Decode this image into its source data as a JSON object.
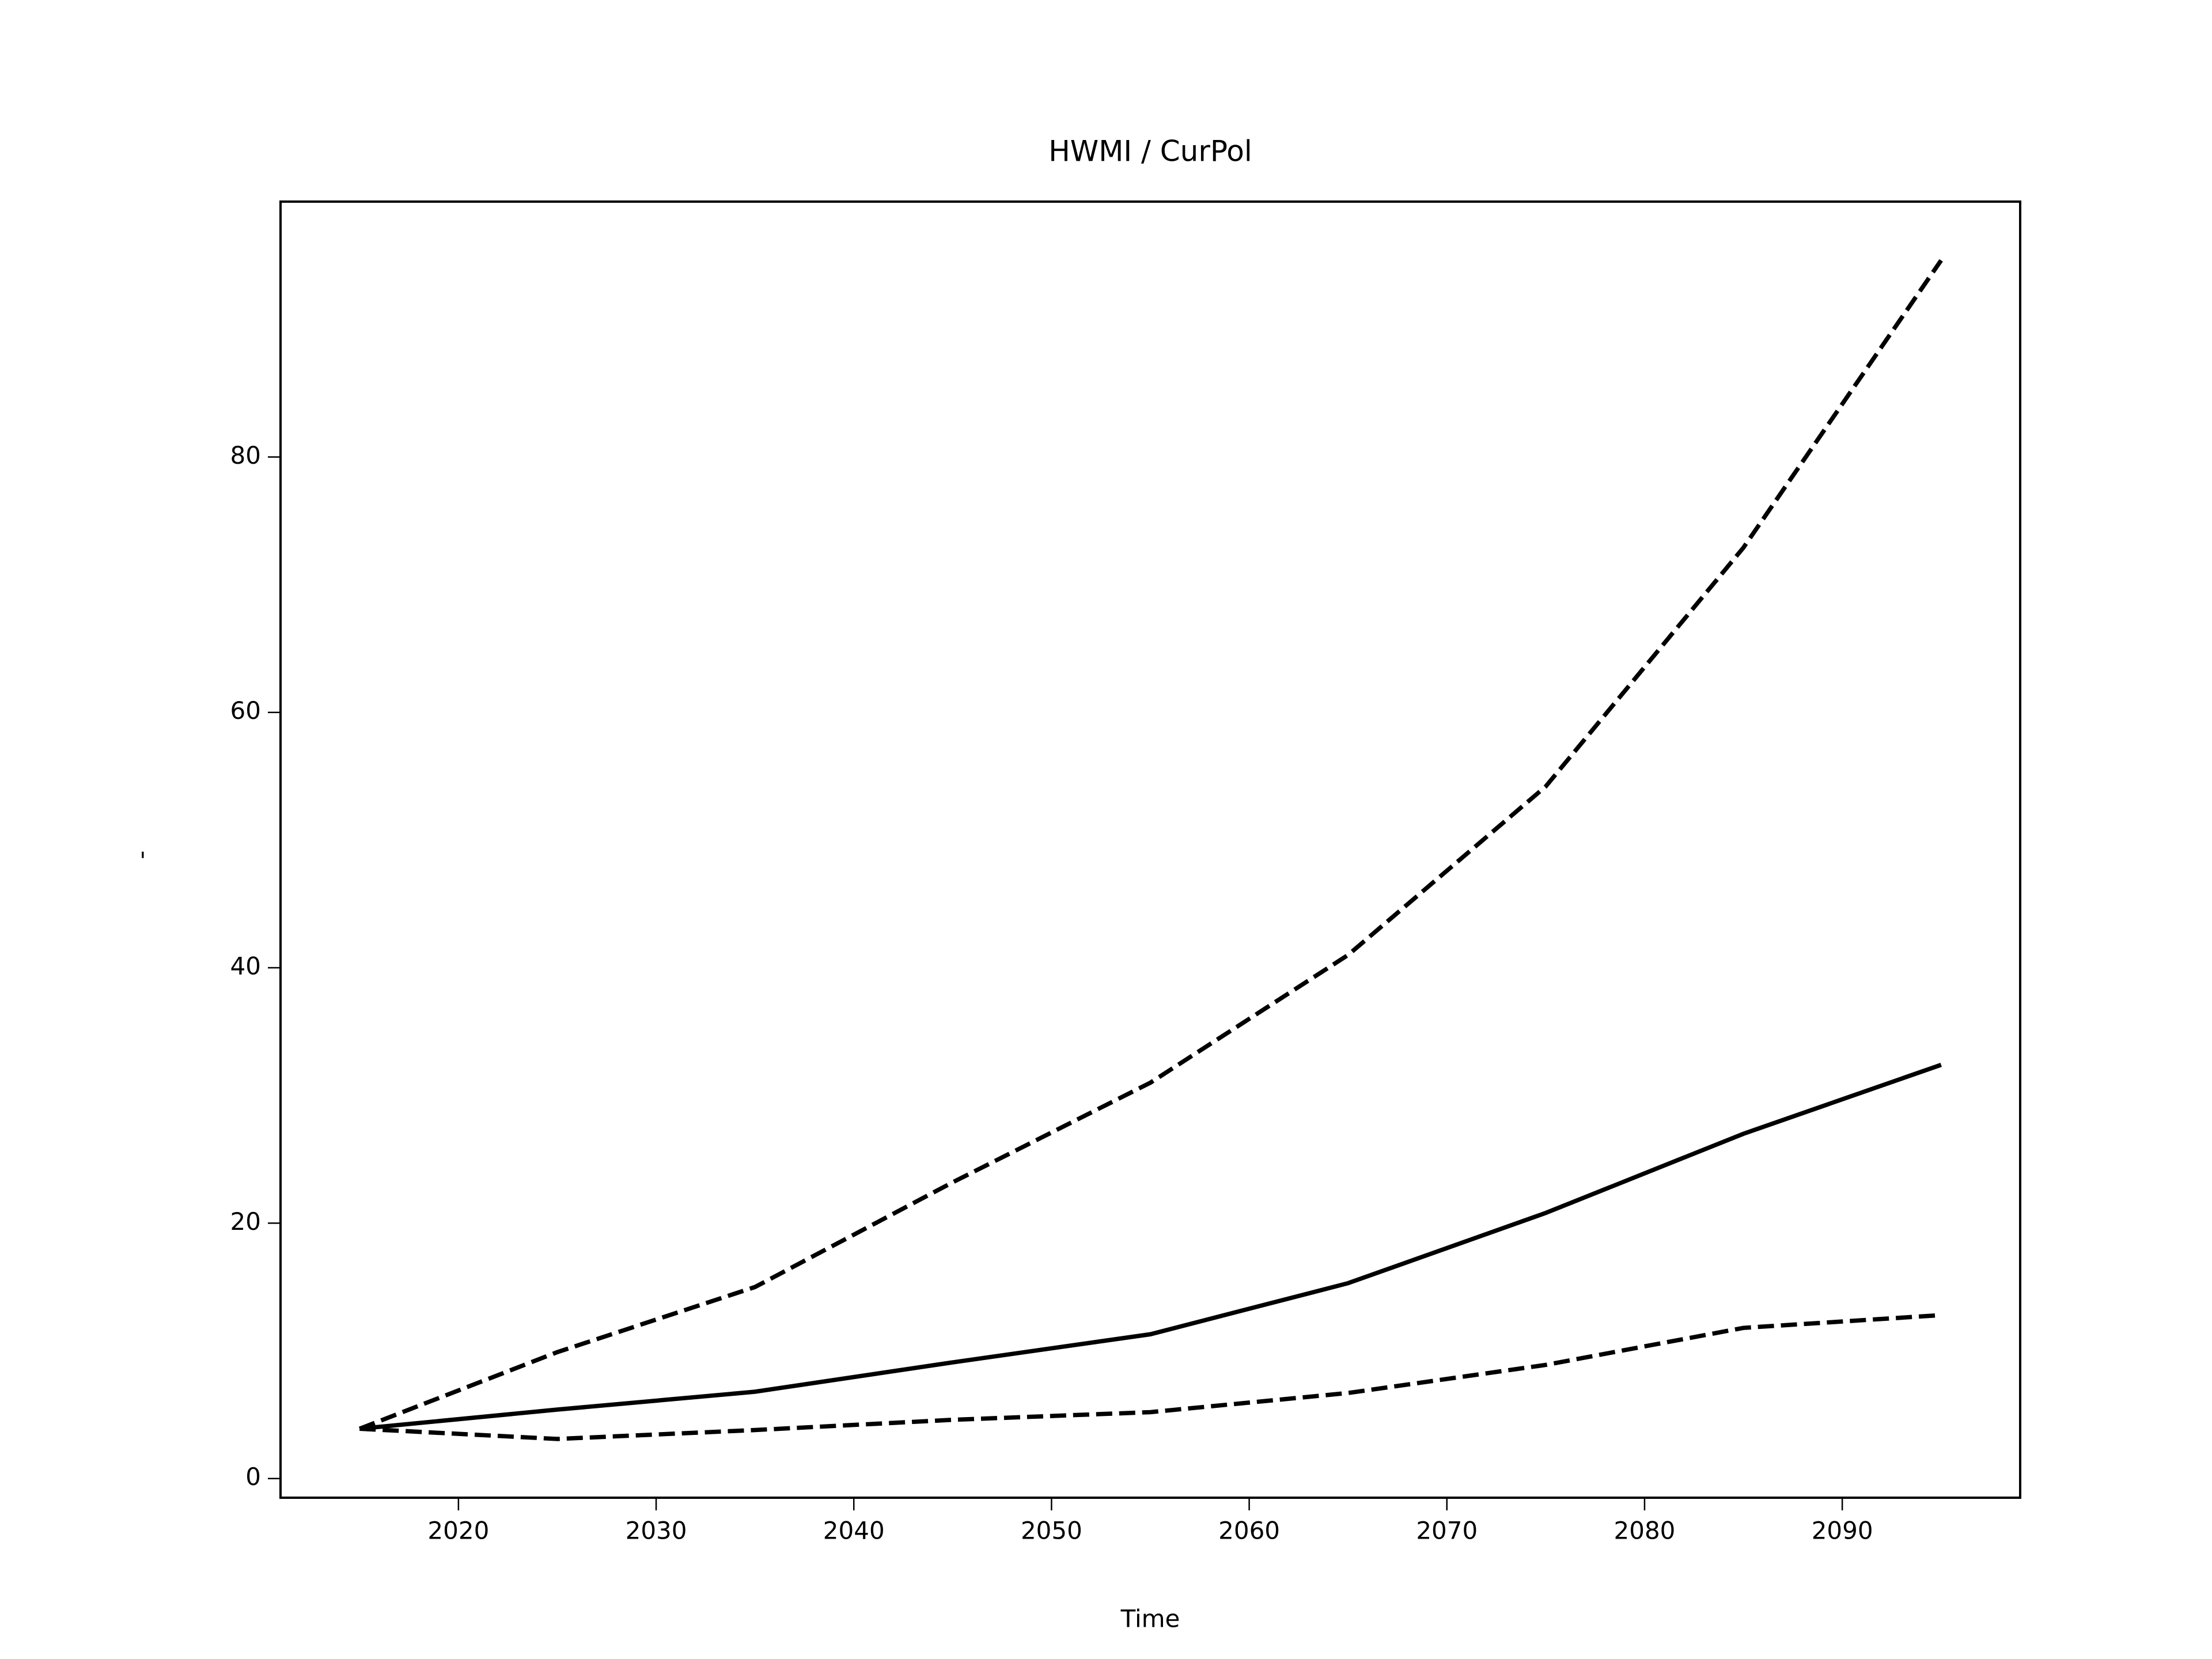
{
  "chart_data": {
    "type": "line",
    "title": "HWMI / CurPol",
    "x_label": "Time",
    "y_label": "-",
    "x": [
      2015,
      2025,
      2035,
      2045,
      2055,
      2065,
      2075,
      2085,
      2095
    ],
    "series": [
      {
        "color": "#000000",
        "linestyle": "dashed",
        "values": [
          3.9,
          9.9,
          15.0,
          23.2,
          31.0,
          41.0,
          54.2,
          72.9,
          95.4
        ]
      },
      {
        "color": "#000000",
        "linestyle": "solid",
        "values": [
          3.9,
          5.4,
          6.8,
          9.1,
          11.3,
          15.3,
          20.8,
          27.0,
          32.4
        ]
      },
      {
        "color": "#000000",
        "linestyle": "dashed",
        "values": [
          3.9,
          3.1,
          3.8,
          4.6,
          5.2,
          6.7,
          8.9,
          11.8,
          12.8
        ]
      }
    ],
    "xlim": [
      2011,
      2099
    ],
    "ylim": [
      -1.5,
      100
    ],
    "xticks": [
      2020,
      2030,
      2040,
      2050,
      2060,
      2070,
      2080,
      2090
    ],
    "yticks": [
      0,
      20,
      40,
      60,
      80
    ],
    "grid": false
  }
}
